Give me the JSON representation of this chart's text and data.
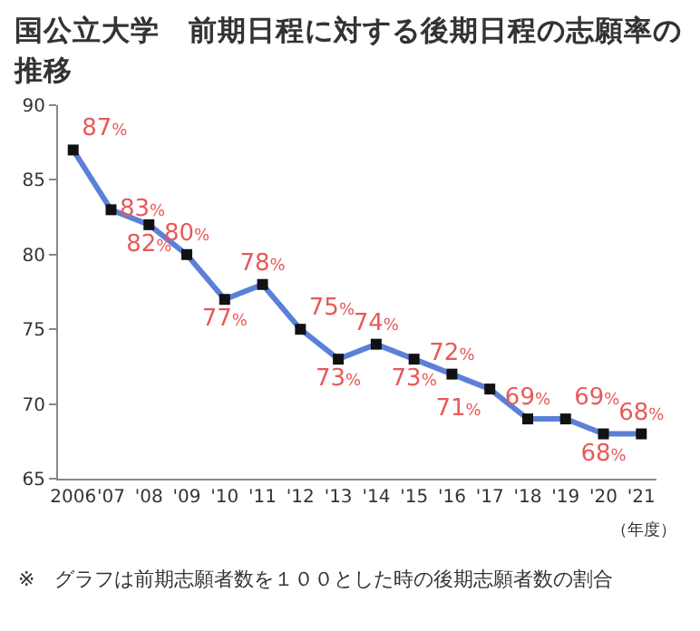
{
  "chart_data": {
    "type": "line",
    "title": "国公立大学　前期日程に対する後期日程の志願率の推移",
    "xlabel": "（年度）",
    "categories": [
      "2006",
      "'07",
      "'08",
      "'09",
      "'10",
      "'11",
      "'12",
      "'13",
      "'14",
      "'15",
      "'16",
      "'17",
      "'18",
      "'19",
      "'20",
      "'21"
    ],
    "series": [
      {
        "color": "#5b80d8",
        "values": [
          87,
          83,
          82,
          80,
          77,
          78,
          75,
          73,
          74,
          73,
          72,
          71,
          69,
          69,
          68,
          68
        ],
        "value_labels": [
          "87%",
          "83%",
          "82%",
          "80%",
          "77%",
          "78%",
          "75%",
          "73%",
          "74%",
          "73%",
          "72%",
          "71%",
          "69%",
          "69%",
          "68%",
          "68%"
        ]
      }
    ],
    "ylim": [
      65,
      90
    ],
    "yticks": [
      65,
      70,
      75,
      80,
      85,
      90
    ],
    "grid": false,
    "legend": false,
    "marker": "square",
    "line_style": "solid",
    "annotations": [
      "※　グラフは前期志願者数を１００とした時の後期志願者数の割合"
    ]
  }
}
